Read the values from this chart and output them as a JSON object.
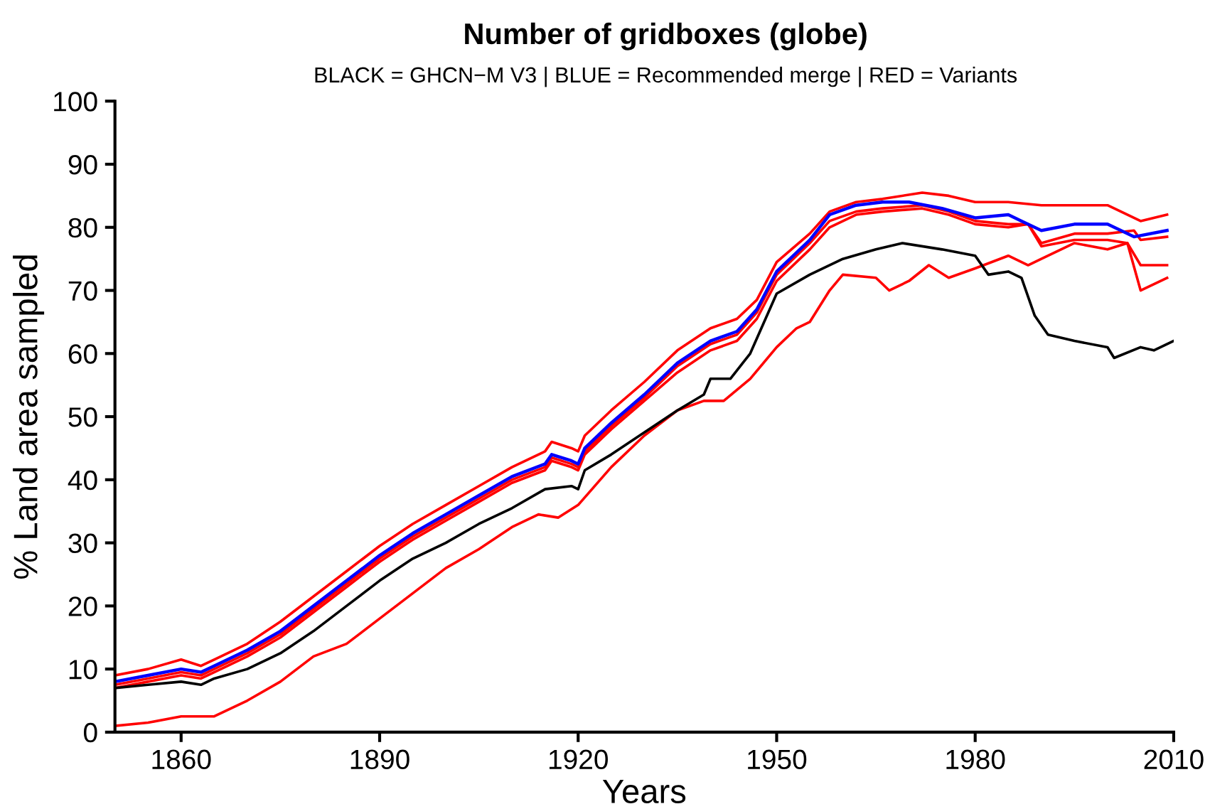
{
  "chart_data": {
    "type": "line",
    "title": "Number of gridboxes (globe)",
    "subtitle": "BLACK = GHCN−M V3 | BLUE = Recommended merge | RED = Variants",
    "xlabel": "Years",
    "ylabel": "% Land area sampled",
    "xlim": [
      1850,
      2010
    ],
    "xticks": [
      1860,
      1890,
      1920,
      1950,
      1980,
      2010
    ],
    "ylim": [
      0,
      100
    ],
    "yticks": [
      0,
      10,
      20,
      30,
      40,
      50,
      60,
      70,
      80,
      90,
      100
    ],
    "marker": "none",
    "line_style": "solid",
    "series": [
      {
        "color": "#ff0000",
        "x": [
          1850,
          1855,
          1860,
          1863,
          1865,
          1870,
          1875,
          1880,
          1885,
          1890,
          1895,
          1900,
          1905,
          1910,
          1915,
          1916,
          1919,
          1920,
          1921,
          1925,
          1930,
          1935,
          1940,
          1944,
          1947,
          1950,
          1955,
          1958,
          1962,
          1966,
          1972,
          1976,
          1980,
          1985,
          1990,
          1995,
          2000,
          2005,
          2009
        ],
        "values": [
          9,
          10,
          11.5,
          10.5,
          11.5,
          14,
          17.5,
          21.5,
          25.5,
          29.5,
          33,
          36,
          39,
          42,
          44.5,
          46,
          45,
          44.5,
          47,
          51,
          55.5,
          60.5,
          64,
          65.5,
          68.5,
          74.5,
          79,
          82.5,
          84,
          84.5,
          85.5,
          85,
          84,
          84,
          83.5,
          83.5,
          83.5,
          81,
          82
        ]
      },
      {
        "color": "#ff0000",
        "x": [
          1850,
          1855,
          1860,
          1863,
          1865,
          1870,
          1875,
          1880,
          1885,
          1890,
          1895,
          1900,
          1905,
          1910,
          1915,
          1916,
          1919,
          1920,
          1921,
          1925,
          1930,
          1935,
          1940,
          1944,
          1947,
          1950,
          1955,
          1958,
          1962,
          1966,
          1972,
          1976,
          1980,
          1985,
          1988,
          1990,
          1995,
          2000,
          2004,
          2005,
          2009
        ],
        "values": [
          7,
          8,
          9,
          8.5,
          9.5,
          12,
          15,
          19,
          23,
          27,
          30.5,
          33.5,
          36.5,
          39.5,
          41.5,
          43,
          42,
          41.5,
          44,
          48,
          52.5,
          57,
          60.5,
          62,
          65.5,
          71.5,
          76.5,
          80,
          82,
          82.5,
          83,
          82,
          80.5,
          80,
          80.5,
          77.5,
          79,
          79,
          79.5,
          78,
          78.5
        ]
      },
      {
        "color": "#ff0000",
        "x": [
          1850,
          1855,
          1860,
          1863,
          1865,
          1870,
          1875,
          1880,
          1885,
          1890,
          1895,
          1900,
          1905,
          1910,
          1915,
          1916,
          1919,
          1920,
          1921,
          1925,
          1930,
          1935,
          1940,
          1944,
          1947,
          1950,
          1955,
          1958,
          1962,
          1966,
          1972,
          1976,
          1980,
          1985,
          1988,
          1990,
          1995,
          2000,
          2003,
          2005,
          2009
        ],
        "values": [
          7.5,
          8.5,
          9.5,
          9,
          10,
          12.5,
          15.5,
          19.5,
          23.5,
          27.5,
          31,
          34,
          37,
          40,
          42,
          43.5,
          42.5,
          42,
          44.5,
          48.5,
          53,
          58,
          61.5,
          63,
          66.5,
          72.5,
          77.5,
          81,
          82.5,
          83,
          83.5,
          82.5,
          81,
          80.5,
          80.5,
          77,
          78,
          78,
          77.5,
          74,
          74
        ]
      },
      {
        "color": "#ff0000",
        "x": [
          1850,
          1855,
          1860,
          1865,
          1870,
          1875,
          1880,
          1885,
          1890,
          1895,
          1900,
          1905,
          1910,
          1914,
          1917,
          1920,
          1925,
          1930,
          1935,
          1939,
          1942,
          1946,
          1950,
          1953,
          1955,
          1958,
          1960,
          1965,
          1967,
          1970,
          1973,
          1976,
          1980,
          1985,
          1988,
          1990,
          1995,
          2000,
          2003,
          2005,
          2009
        ],
        "values": [
          1,
          1.5,
          2.5,
          2.5,
          5,
          8,
          12,
          14,
          18,
          22,
          26,
          29,
          32.5,
          34.5,
          34,
          36,
          42,
          47,
          51,
          52.5,
          52.5,
          56,
          61,
          64,
          65,
          70,
          72.5,
          72,
          70,
          71.5,
          74,
          72,
          73.5,
          75.5,
          74,
          75,
          77.5,
          76.5,
          77.5,
          70,
          72
        ]
      },
      {
        "color": "#000000",
        "x": [
          1850,
          1855,
          1860,
          1863,
          1865,
          1870,
          1875,
          1880,
          1885,
          1890,
          1895,
          1900,
          1905,
          1910,
          1915,
          1919,
          1920,
          1921,
          1925,
          1930,
          1935,
          1939,
          1940,
          1943,
          1946,
          1950,
          1955,
          1960,
          1965,
          1969,
          1975,
          1980,
          1982,
          1985,
          1987,
          1989,
          1991,
          1995,
          2000,
          2001,
          2005,
          2007,
          2010
        ],
        "values": [
          7,
          7.5,
          8,
          7.5,
          8.5,
          10,
          12.5,
          16,
          20,
          24,
          27.5,
          30,
          33,
          35.5,
          38.5,
          39,
          38.5,
          41.5,
          44,
          47.5,
          51,
          53.5,
          56,
          56,
          60,
          69.5,
          72.5,
          75,
          76.5,
          77.5,
          76.5,
          75.5,
          72.5,
          73,
          72,
          66,
          63,
          62,
          61,
          59.3,
          61,
          60.5,
          62
        ]
      },
      {
        "color": "#0000ff",
        "x": [
          1850,
          1855,
          1860,
          1863,
          1865,
          1870,
          1875,
          1880,
          1885,
          1890,
          1895,
          1900,
          1905,
          1910,
          1915,
          1916,
          1919,
          1920,
          1921,
          1925,
          1930,
          1935,
          1940,
          1944,
          1947,
          1950,
          1955,
          1958,
          1962,
          1966,
          1970,
          1975,
          1980,
          1985,
          1987,
          1990,
          1995,
          2000,
          2004,
          2009
        ],
        "values": [
          8,
          9,
          10,
          9.5,
          10.5,
          13,
          16,
          20,
          24,
          28,
          31.5,
          34.5,
          37.5,
          40.5,
          42.5,
          44,
          43,
          42.5,
          45,
          49,
          53.5,
          58.5,
          62,
          63.5,
          67,
          73,
          78,
          82,
          83.5,
          84,
          84,
          83,
          81.5,
          82,
          81,
          79.5,
          80.5,
          80.5,
          78.5,
          79.5
        ]
      }
    ]
  }
}
